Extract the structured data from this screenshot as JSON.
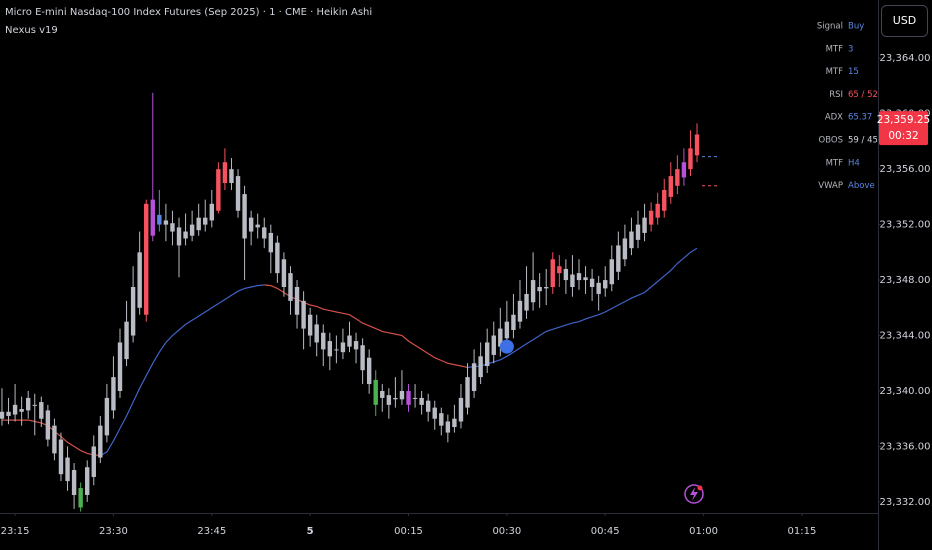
{
  "chart_data": {
    "type": "candlestick",
    "title": "Micro E-mini Nasdaq-100 Index Futures (Sep 2025) · 1 · CME · Heikin Ashi",
    "subtitle": "Nexus v19",
    "currency": "USD",
    "ylim": [
      23331.2,
      23368.2
    ],
    "yticks": [
      {
        "value": 23332,
        "label": "23,332.00"
      },
      {
        "value": 23336,
        "label": "23,336.00"
      },
      {
        "value": 23340,
        "label": "23,340.00"
      },
      {
        "value": 23344,
        "label": "23,344.00"
      },
      {
        "value": 23348,
        "label": "23,348.00"
      },
      {
        "value": 23352,
        "label": "23,352.00"
      },
      {
        "value": 23356,
        "label": "23,356.00"
      },
      {
        "value": 23360,
        "label": "23,360.00"
      },
      {
        "value": 23364,
        "label": "23,364.00"
      }
    ],
    "xlim": [
      -0.3,
      133.6
    ],
    "xticks": [
      {
        "value": 2,
        "label": "23:15"
      },
      {
        "value": 17,
        "label": "23:30"
      },
      {
        "value": 32,
        "label": "23:45"
      },
      {
        "value": 47,
        "label": "5"
      },
      {
        "value": 62,
        "label": "00:15"
      },
      {
        "value": 77,
        "label": "00:30"
      },
      {
        "value": 92,
        "label": "00:45"
      },
      {
        "value": 107,
        "label": "01:00"
      },
      {
        "value": 122,
        "label": "01:15"
      }
    ],
    "grid": false,
    "palette": {
      "gray": "#b9bcc4",
      "red": "#f7525f",
      "purple": "#b552d8",
      "green": "#4caf50",
      "blue": "#5b86e5"
    },
    "ohlc": [
      [
        23338.5,
        23340.2,
        23337.5,
        23338.0
      ],
      [
        23338.2,
        23339.5,
        23337.6,
        23338.5
      ],
      [
        23338.3,
        23340.5,
        23337.8,
        23339.0
      ],
      [
        23338.7,
        23339.6,
        23337.5,
        23338.5
      ],
      [
        23338.6,
        23340.0,
        23338.0,
        23339.5
      ],
      [
        23339.0,
        23339.8,
        23336.8,
        23339.0
      ],
      [
        23339.2,
        23339.6,
        23337.4,
        23338.0
      ],
      [
        23338.6,
        23339.0,
        23336.0,
        23336.5
      ],
      [
        23337.5,
        23338.0,
        23335.0,
        23335.5
      ],
      [
        23336.5,
        23337.0,
        23333.5,
        23334.0
      ],
      [
        23335.2,
        23336.0,
        23332.8,
        23333.5
      ],
      [
        23334.3,
        23334.8,
        23331.5,
        23332.5
      ],
      [
        23331.6,
        23333.4,
        23331.3,
        23333.0
      ],
      [
        23332.5,
        23335.0,
        23332.0,
        23334.5
      ],
      [
        23333.8,
        23336.8,
        23333.2,
        23336.0
      ],
      [
        23335.2,
        23338.2,
        23334.8,
        23337.5
      ],
      [
        23336.8,
        23340.5,
        23336.3,
        23339.5
      ],
      [
        23338.6,
        23342.5,
        23338.0,
        23341.0
      ],
      [
        23340.0,
        23344.5,
        23339.5,
        23343.5
      ],
      [
        23342.3,
        23346.5,
        23341.8,
        23345.0
      ],
      [
        23344.0,
        23349.0,
        23343.5,
        23347.5
      ],
      [
        23346.0,
        23351.5,
        23345.5,
        23350.0
      ],
      [
        23345.5,
        23353.8,
        23345.0,
        23353.5
      ],
      [
        23351.2,
        23361.5,
        23350.8,
        23353.8
      ],
      [
        23352.7,
        23354.5,
        23351.5,
        23352.0
      ],
      [
        23352.3,
        23353.5,
        23350.8,
        23352.0
      ],
      [
        23352.1,
        23353.0,
        23350.5,
        23351.5
      ],
      [
        23351.8,
        23352.5,
        23348.2,
        23350.5
      ],
      [
        23351.0,
        23352.8,
        23350.5,
        23351.5
      ],
      [
        23351.2,
        23353.0,
        23350.8,
        23352.0
      ],
      [
        23351.6,
        23353.5,
        23351.2,
        23352.5
      ],
      [
        23352.0,
        23353.8,
        23351.5,
        23352.5
      ],
      [
        23352.3,
        23354.5,
        23351.8,
        23353.5
      ],
      [
        23353.0,
        23356.5,
        23352.8,
        23356.0
      ],
      [
        23355.0,
        23357.5,
        23354.5,
        23356.5
      ],
      [
        23356.0,
        23356.8,
        23354.5,
        23355.0
      ],
      [
        23355.5,
        23356.0,
        23352.5,
        23353.0
      ],
      [
        23354.2,
        23354.8,
        23348.0,
        23351.0
      ],
      [
        23352.5,
        23353.0,
        23350.5,
        23351.5
      ],
      [
        23351.8,
        23352.8,
        23351.0,
        23352.0
      ],
      [
        23351.8,
        23352.5,
        23350.3,
        23351.0
      ],
      [
        23351.4,
        23352.0,
        23348.5,
        23350.0
      ],
      [
        23350.7,
        23351.2,
        23347.8,
        23348.5
      ],
      [
        23349.5,
        23350.0,
        23346.8,
        23347.5
      ],
      [
        23348.5,
        23349.0,
        23345.5,
        23346.5
      ],
      [
        23347.5,
        23348.0,
        23344.5,
        23345.5
      ],
      [
        23346.5,
        23347.2,
        23343.0,
        23344.5
      ],
      [
        23345.5,
        23346.0,
        23343.2,
        23344.0
      ],
      [
        23344.8,
        23345.5,
        23342.5,
        23343.5
      ],
      [
        23344.2,
        23344.8,
        23341.8,
        23343.0
      ],
      [
        23343.6,
        23344.2,
        23341.5,
        23342.5
      ],
      [
        23343.0,
        23344.0,
        23342.0,
        23343.0
      ],
      [
        23342.8,
        23344.5,
        23342.3,
        23343.5
      ],
      [
        23343.2,
        23345.0,
        23342.8,
        23344.0
      ],
      [
        23343.6,
        23344.2,
        23342.0,
        23343.0
      ],
      [
        23343.3,
        23343.8,
        23340.5,
        23341.5
      ],
      [
        23342.4,
        23343.0,
        23339.8,
        23340.5
      ],
      [
        23340.8,
        23341.5,
        23338.2,
        23339.0
      ],
      [
        23340.0,
        23340.5,
        23338.5,
        23339.5
      ],
      [
        23339.7,
        23340.2,
        23338.0,
        23339.0
      ],
      [
        23339.4,
        23341.0,
        23338.8,
        23339.5
      ],
      [
        23339.4,
        23341.5,
        23339.0,
        23340.0
      ],
      [
        23340.0,
        23340.5,
        23338.5,
        23339.0
      ],
      [
        23339.5,
        23340.5,
        23338.8,
        23339.5
      ],
      [
        23339.5,
        23340.0,
        23338.3,
        23339.0
      ],
      [
        23339.3,
        23339.8,
        23337.8,
        23338.5
      ],
      [
        23338.8,
        23339.3,
        23337.2,
        23338.0
      ],
      [
        23338.4,
        23338.8,
        23336.8,
        23337.5
      ],
      [
        23337.8,
        23338.3,
        23336.3,
        23337.0
      ],
      [
        23337.4,
        23339.0,
        23337.0,
        23338.0
      ],
      [
        23337.8,
        23340.5,
        23337.3,
        23339.5
      ],
      [
        23338.8,
        23342.0,
        23338.3,
        23341.0
      ],
      [
        23340.0,
        23343.0,
        23339.5,
        23342.0
      ],
      [
        23341.0,
        23343.5,
        23340.5,
        23342.5
      ],
      [
        23341.8,
        23344.5,
        23341.3,
        23343.5
      ],
      [
        23342.6,
        23345.0,
        23342.0,
        23344.0
      ],
      [
        23343.2,
        23346.0,
        23342.5,
        23344.5
      ],
      [
        23343.8,
        23346.5,
        23343.2,
        23345.0
      ],
      [
        23344.4,
        23347.0,
        23343.8,
        23345.5
      ],
      [
        23345.0,
        23348.0,
        23344.5,
        23346.5
      ],
      [
        23345.8,
        23349.0,
        23345.2,
        23347.0
      ],
      [
        23346.4,
        23350.0,
        23345.8,
        23348.0
      ],
      [
        23347.2,
        23348.5,
        23346.0,
        23347.5
      ],
      [
        23347.4,
        23348.8,
        23346.2,
        23347.5
      ],
      [
        23347.5,
        23350.0,
        23347.0,
        23349.5
      ],
      [
        23348.5,
        23349.8,
        23347.5,
        23349.0
      ],
      [
        23348.8,
        23349.5,
        23347.0,
        23348.0
      ],
      [
        23348.4,
        23349.8,
        23346.8,
        23347.5
      ],
      [
        23348.0,
        23349.5,
        23347.3,
        23348.5
      ],
      [
        23348.2,
        23349.0,
        23347.0,
        23348.0
      ],
      [
        23348.1,
        23348.8,
        23346.5,
        23347.5
      ],
      [
        23347.8,
        23348.3,
        23345.8,
        23347.0
      ],
      [
        23347.4,
        23349.0,
        23346.8,
        23348.0
      ],
      [
        23347.7,
        23350.5,
        23347.2,
        23349.5
      ],
      [
        23348.6,
        23351.5,
        23348.0,
        23350.5
      ],
      [
        23349.5,
        23352.0,
        23349.0,
        23351.0
      ],
      [
        23350.3,
        23352.5,
        23349.8,
        23351.5
      ],
      [
        23350.9,
        23353.0,
        23350.3,
        23352.0
      ],
      [
        23351.4,
        23353.5,
        23350.8,
        23352.5
      ],
      [
        23352.0,
        23353.6,
        23351.5,
        23353.0
      ],
      [
        23352.5,
        23354.3,
        23352.0,
        23353.5
      ],
      [
        23353.0,
        23355.3,
        23352.5,
        23354.5
      ],
      [
        23354.0,
        23356.5,
        23353.5,
        23355.5
      ],
      [
        23354.8,
        23357.0,
        23354.2,
        23356.0
      ],
      [
        23355.4,
        23357.5,
        23354.8,
        23356.5
      ],
      [
        23356.0,
        23358.8,
        23355.5,
        23357.5
      ],
      [
        23357.0,
        23359.3,
        23356.5,
        23358.5
      ]
    ],
    "candle_colors": [
      "gray",
      "gray",
      "gray",
      "gray",
      "gray",
      "gray",
      "gray",
      "gray",
      "gray",
      "gray",
      "gray",
      "gray",
      "green",
      "gray",
      "gray",
      "gray",
      "gray",
      "gray",
      "gray",
      "gray",
      "gray",
      "gray",
      "red",
      "purple",
      "blue",
      "gray",
      "gray",
      "gray",
      "gray",
      "gray",
      "gray",
      "gray",
      "gray",
      "red",
      "red",
      "gray",
      "gray",
      "gray",
      "gray",
      "gray",
      "gray",
      "gray",
      "gray",
      "gray",
      "gray",
      "gray",
      "gray",
      "gray",
      "gray",
      "gray",
      "gray",
      "gray",
      "gray",
      "gray",
      "gray",
      "gray",
      "gray",
      "green",
      "gray",
      "gray",
      "gray",
      "gray",
      "purple",
      "gray",
      "gray",
      "gray",
      "gray",
      "gray",
      "gray",
      "gray",
      "gray",
      "gray",
      "gray",
      "gray",
      "gray",
      "gray",
      "gray",
      "gray",
      "gray",
      "gray",
      "gray",
      "gray",
      "gray",
      "gray",
      "red",
      "red",
      "gray",
      "gray",
      "gray",
      "gray",
      "gray",
      "gray",
      "gray",
      "gray",
      "gray",
      "gray",
      "gray",
      "gray",
      "gray",
      "red",
      "red",
      "red",
      "red",
      "red",
      "purple",
      "red",
      "red"
    ],
    "ma": {
      "up_color": "#3f63c8",
      "down_color": "#d2504a",
      "values": [
        23337.9,
        23337.9,
        23337.9,
        23337.9,
        23337.9,
        23337.8,
        23337.7,
        23337.5,
        23337.1,
        23336.7,
        23336.3,
        23336.0,
        23335.7,
        23335.5,
        23335.4,
        23335.35,
        23335.6,
        23336.4,
        23337.3,
        23338.2,
        23339.2,
        23340.2,
        23341.1,
        23342.0,
        23342.8,
        23343.5,
        23344.0,
        23344.4,
        23344.8,
        23345.1,
        23345.4,
        23345.7,
        23346.0,
        23346.3,
        23346.6,
        23346.9,
        23347.2,
        23347.4,
        23347.5,
        23347.6,
        23347.65,
        23347.6,
        23347.4,
        23347.1,
        23346.8,
        23346.6,
        23346.4,
        23346.2,
        23346.1,
        23345.9,
        23345.8,
        23345.7,
        23345.6,
        23345.5,
        23345.2,
        23344.9,
        23344.7,
        23344.5,
        23344.3,
        23344.2,
        23344.1,
        23344.0,
        23343.6,
        23343.3,
        23343.0,
        23342.7,
        23342.4,
        23342.2,
        23342.0,
        23341.9,
        23341.8,
        23341.7,
        23341.75,
        23341.8,
        23341.95,
        23342.1,
        23342.25,
        23342.5,
        23342.8,
        23343.1,
        23343.4,
        23343.7,
        23344.0,
        23344.3,
        23344.45,
        23344.6,
        23344.75,
        23344.9,
        23345.0,
        23345.2,
        23345.35,
        23345.5,
        23345.7,
        23345.95,
        23346.2,
        23346.45,
        23346.7,
        23346.9,
        23347.1,
        23347.5,
        23347.9,
        23348.3,
        23348.7,
        23349.2,
        23349.6,
        23350.0,
        23350.3
      ]
    },
    "signal": {
      "index": 77,
      "value": 23343.2,
      "color": "#3d6fe6"
    },
    "levels": [
      {
        "value": 23356.9,
        "color": "#5b86e5"
      },
      {
        "value": 23354.8,
        "color": "#f7525f"
      }
    ],
    "last_price": {
      "value": 23359.25,
      "label": "23,359.25",
      "countdown": "00:32",
      "color": "#f23645"
    },
    "table": [
      {
        "label": "Signal",
        "value": "Buy",
        "color": "#5b86e5"
      },
      {
        "label": "MTF",
        "value": "3",
        "color": "#5b86e5"
      },
      {
        "label": "MTF",
        "value": "15",
        "color": "#5b86e5"
      },
      {
        "label": "RSI",
        "value": "65 / 52",
        "color": "#f7525f"
      },
      {
        "label": "ADX",
        "value": "65.37",
        "color": "#5b86e5"
      },
      {
        "label": "OBOS",
        "value": "59 / 45",
        "color": "#d1d4dc"
      },
      {
        "label": "MTF",
        "value": "H4",
        "color": "#5b86e5"
      },
      {
        "label": "VWAP",
        "value": "Above",
        "color": "#5b86e5"
      }
    ]
  }
}
